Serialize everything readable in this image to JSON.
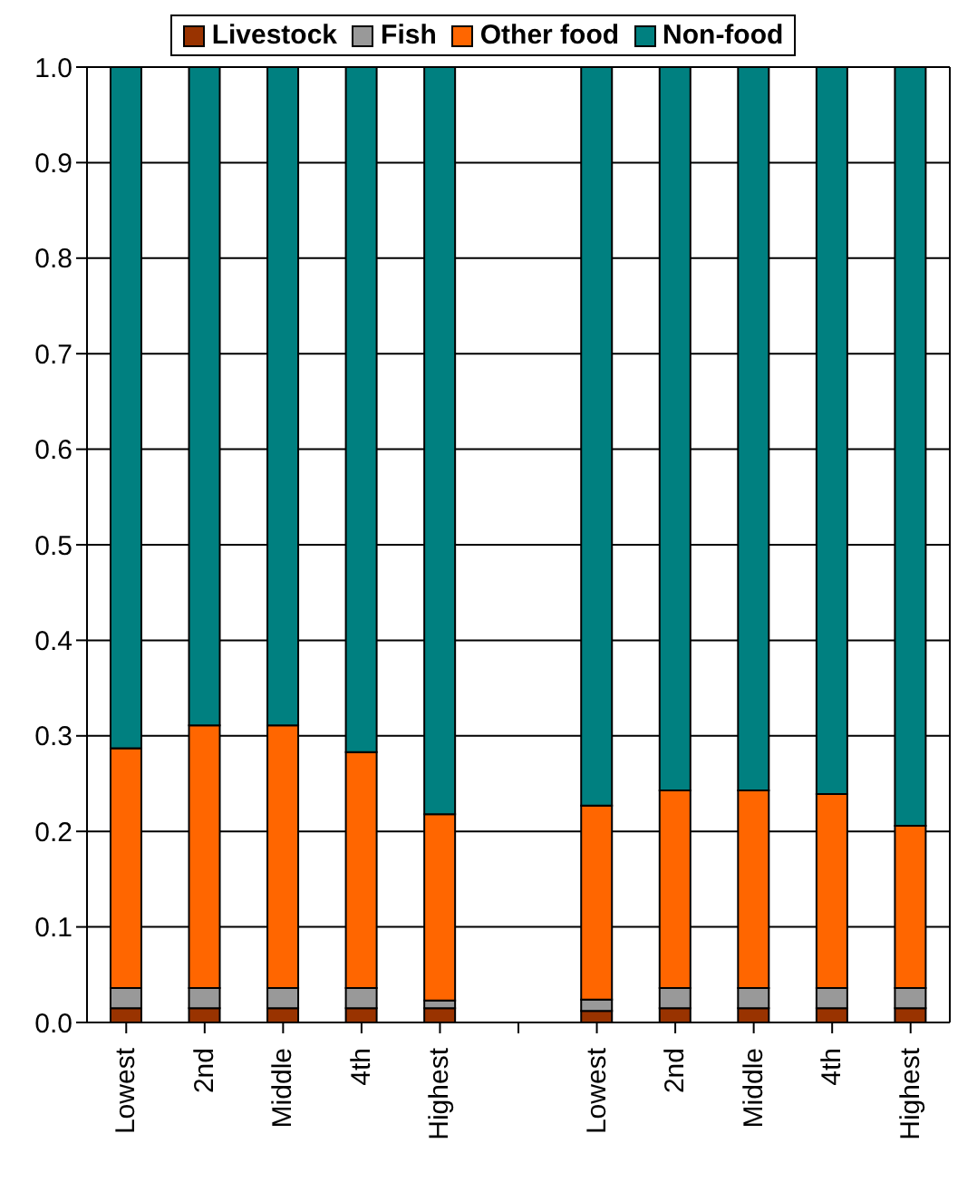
{
  "chart_data": {
    "type": "bar",
    "stacked": true,
    "categories": [
      "Lowest",
      "2nd",
      "Middle",
      "4th",
      "Highest",
      null,
      "Lowest",
      "2nd",
      "Middle",
      "4th",
      "Highest"
    ],
    "series": [
      {
        "name": "Livestock",
        "color": "#993300",
        "values": [
          0.015,
          0.015,
          0.015,
          0.015,
          0.015,
          null,
          0.012,
          0.015,
          0.015,
          0.015,
          0.015
        ]
      },
      {
        "name": "Fish",
        "color": "#999999",
        "values": [
          0.021,
          0.021,
          0.021,
          0.021,
          0.008,
          null,
          0.012,
          0.021,
          0.021,
          0.021,
          0.021
        ]
      },
      {
        "name": "Other food",
        "color": "#ff6600",
        "values": [
          0.251,
          0.275,
          0.275,
          0.247,
          0.195,
          null,
          0.203,
          0.207,
          0.207,
          0.203,
          0.17
        ]
      },
      {
        "name": "Non-food",
        "color": "#008080",
        "values": [
          0.713,
          0.689,
          0.689,
          0.717,
          0.782,
          null,
          0.773,
          0.757,
          0.757,
          0.761,
          0.794
        ]
      }
    ],
    "ylim": [
      0,
      1
    ],
    "yticks": [
      {
        "value": 0,
        "label": "0.0"
      },
      0.1,
      0.2,
      0.3,
      0.4,
      0.5,
      0.6,
      0.7,
      0.8,
      0.9,
      {
        "value": 1,
        "label": "1.0"
      }
    ],
    "grid": "y",
    "legend": "top"
  }
}
